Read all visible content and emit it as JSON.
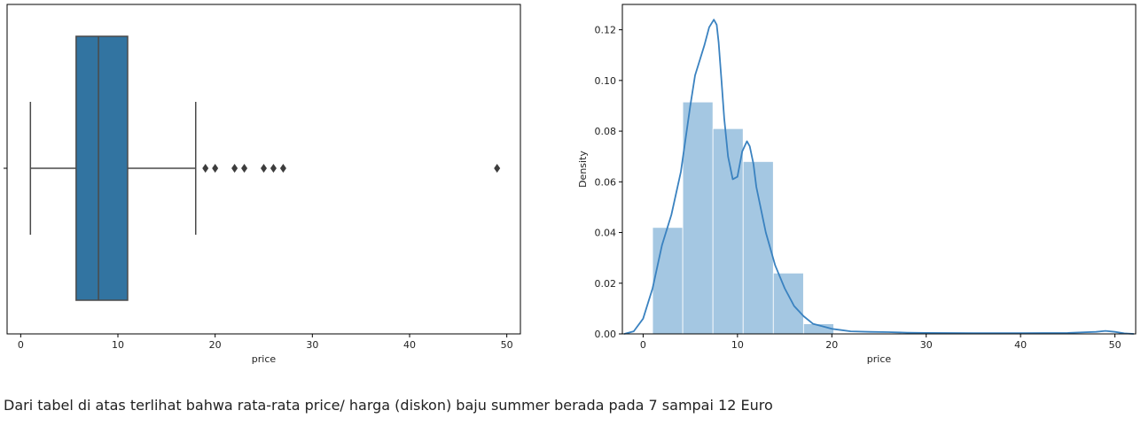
{
  "chart_data": [
    {
      "type": "box",
      "xlabel": "price",
      "ylabel": "",
      "xlim": [
        -1.4,
        51.4
      ],
      "xticks": [
        0,
        10,
        20,
        30,
        40,
        50
      ],
      "color": "#3274a1",
      "whisker_low": 1,
      "q1": 5.7,
      "median": 8,
      "q3": 11,
      "whisker_high": 18,
      "outliers": [
        19,
        20,
        22,
        23,
        25,
        26,
        27,
        49
      ]
    },
    {
      "type": "histogram+kde",
      "xlabel": "price",
      "ylabel": "Density",
      "xlim": [
        -2.2,
        52.2
      ],
      "ylim": [
        0,
        0.13
      ],
      "xticks": [
        0,
        10,
        20,
        30,
        40,
        50
      ],
      "yticks": [
        0.0,
        0.02,
        0.04,
        0.06,
        0.08,
        0.1,
        0.12
      ],
      "bar_color": "#a4c7e2",
      "line_color": "#3a82c0",
      "bin_width": 3.2,
      "bins": [
        {
          "x0": 1.0,
          "density": 0.042
        },
        {
          "x0": 4.2,
          "density": 0.0915
        },
        {
          "x0": 7.4,
          "density": 0.081
        },
        {
          "x0": 10.6,
          "density": 0.068
        },
        {
          "x0": 13.8,
          "density": 0.024
        },
        {
          "x0": 17.0,
          "density": 0.004
        }
      ],
      "kde_x": [
        -2,
        -1,
        0,
        1,
        2,
        3,
        4,
        5,
        5.5,
        6,
        6.5,
        7,
        7.5,
        7.8,
        8,
        8.3,
        8.6,
        9,
        9.5,
        10,
        10.5,
        11,
        11.3,
        11.7,
        12,
        13,
        14,
        15,
        16,
        17,
        18,
        19,
        20,
        21,
        22,
        24,
        26,
        28,
        30,
        35,
        40,
        45,
        48,
        49,
        50,
        51,
        52
      ],
      "kde_y": [
        0,
        0.001,
        0.006,
        0.018,
        0.035,
        0.047,
        0.064,
        0.09,
        0.102,
        0.108,
        0.114,
        0.121,
        0.124,
        0.122,
        0.115,
        0.1,
        0.085,
        0.07,
        0.061,
        0.062,
        0.072,
        0.076,
        0.074,
        0.067,
        0.058,
        0.04,
        0.027,
        0.018,
        0.011,
        0.007,
        0.004,
        0.003,
        0.002,
        0.0015,
        0.001,
        0.0008,
        0.0007,
        0.0005,
        0.0004,
        0.0003,
        0.0003,
        0.0004,
        0.0008,
        0.0012,
        0.0008,
        0.0002,
        0
      ]
    }
  ],
  "caption": "Dari tabel di atas terlihat bahwa rata-rata price/ harga (diskon) baju summer berada pada 7 sampai 12 Euro"
}
